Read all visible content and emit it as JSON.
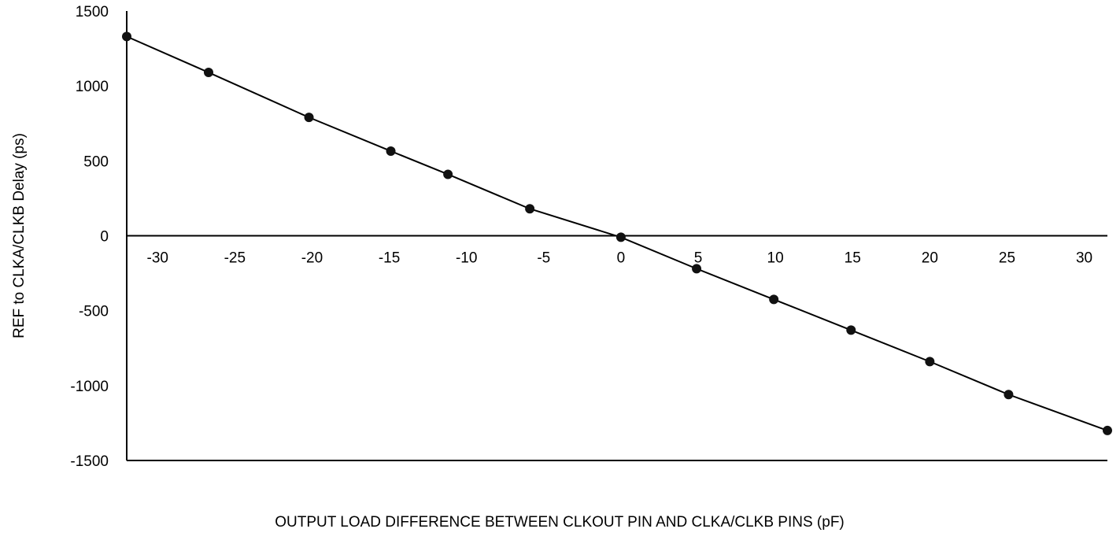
{
  "chart_data": {
    "type": "line",
    "title": "",
    "xlabel": "OUTPUT LOAD DIFFERENCE BETWEEN CLKOUT PIN AND CLKA/CLKB PINS (pF)",
    "ylabel": "REF to CLKA/CLKB Delay (ps)",
    "xlim": [
      -32,
      31.5
    ],
    "ylim": [
      -1500,
      1500
    ],
    "x_ticks": [
      -30,
      -25,
      -20,
      -15,
      -10,
      -5,
      0,
      5,
      10,
      15,
      20,
      25,
      30
    ],
    "y_ticks": [
      1500,
      1000,
      500,
      0,
      -500,
      -1000,
      -1500
    ],
    "grid": false,
    "legend": "none",
    "line_color": "#000000",
    "marker_color": "#111111",
    "series": [
      {
        "x": [
          -32,
          -26.7,
          -20.2,
          -14.9,
          -11.2,
          -5.9,
          0,
          4.9,
          9.9,
          14.9,
          20,
          25.1,
          31.5
        ],
        "y": [
          1330,
          1090,
          790,
          565,
          410,
          180,
          -10,
          -220,
          -425,
          -630,
          -840,
          -1060,
          -1300
        ]
      }
    ]
  }
}
